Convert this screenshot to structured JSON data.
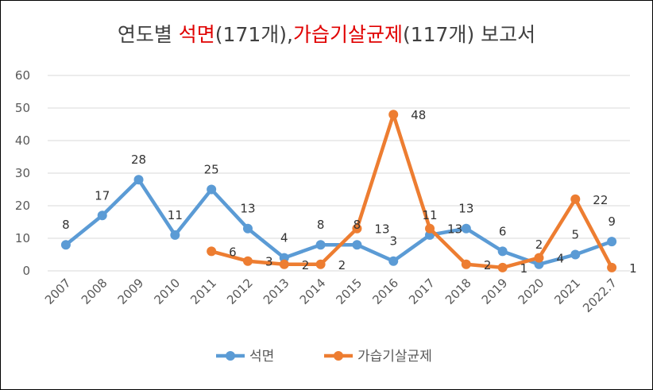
{
  "chart_data": {
    "type": "line",
    "title": {
      "part1": "연도별 ",
      "part2": "석면",
      "part3": "(171개),",
      "part4": "가습기살균제",
      "part5": "(117개) 보고서"
    },
    "categories": [
      "2007",
      "2008",
      "2009",
      "2010",
      "2011",
      "2012",
      "2013",
      "2014",
      "2015",
      "2016",
      "2017",
      "2018",
      "2019",
      "2020",
      "2021",
      "2022.7"
    ],
    "ylim": [
      0,
      60
    ],
    "yticks": [
      "0",
      "10",
      "20",
      "30",
      "40",
      "50",
      "60"
    ],
    "grid": true,
    "legend_position": "bottom",
    "series": [
      {
        "name": "석면",
        "color": "#5b9bd5",
        "values": [
          8,
          17,
          28,
          11,
          25,
          13,
          4,
          8,
          8,
          3,
          11,
          13,
          6,
          2,
          5,
          9
        ],
        "labels": [
          "8",
          "17",
          "28",
          "11",
          "25",
          "13",
          "4",
          "8",
          "8",
          "3",
          "11",
          "13",
          "6",
          "2",
          "5",
          "9"
        ]
      },
      {
        "name": "가습기살균제",
        "color": "#ed7d31",
        "values": [
          null,
          null,
          null,
          null,
          6,
          3,
          2,
          2,
          13,
          48,
          13,
          2,
          1,
          4,
          22,
          1
        ],
        "labels": [
          "",
          "",
          "",
          "",
          "6",
          "3",
          "2",
          "2",
          "13",
          "48",
          "13",
          "2",
          "1",
          "4",
          "22",
          "1"
        ]
      }
    ]
  }
}
